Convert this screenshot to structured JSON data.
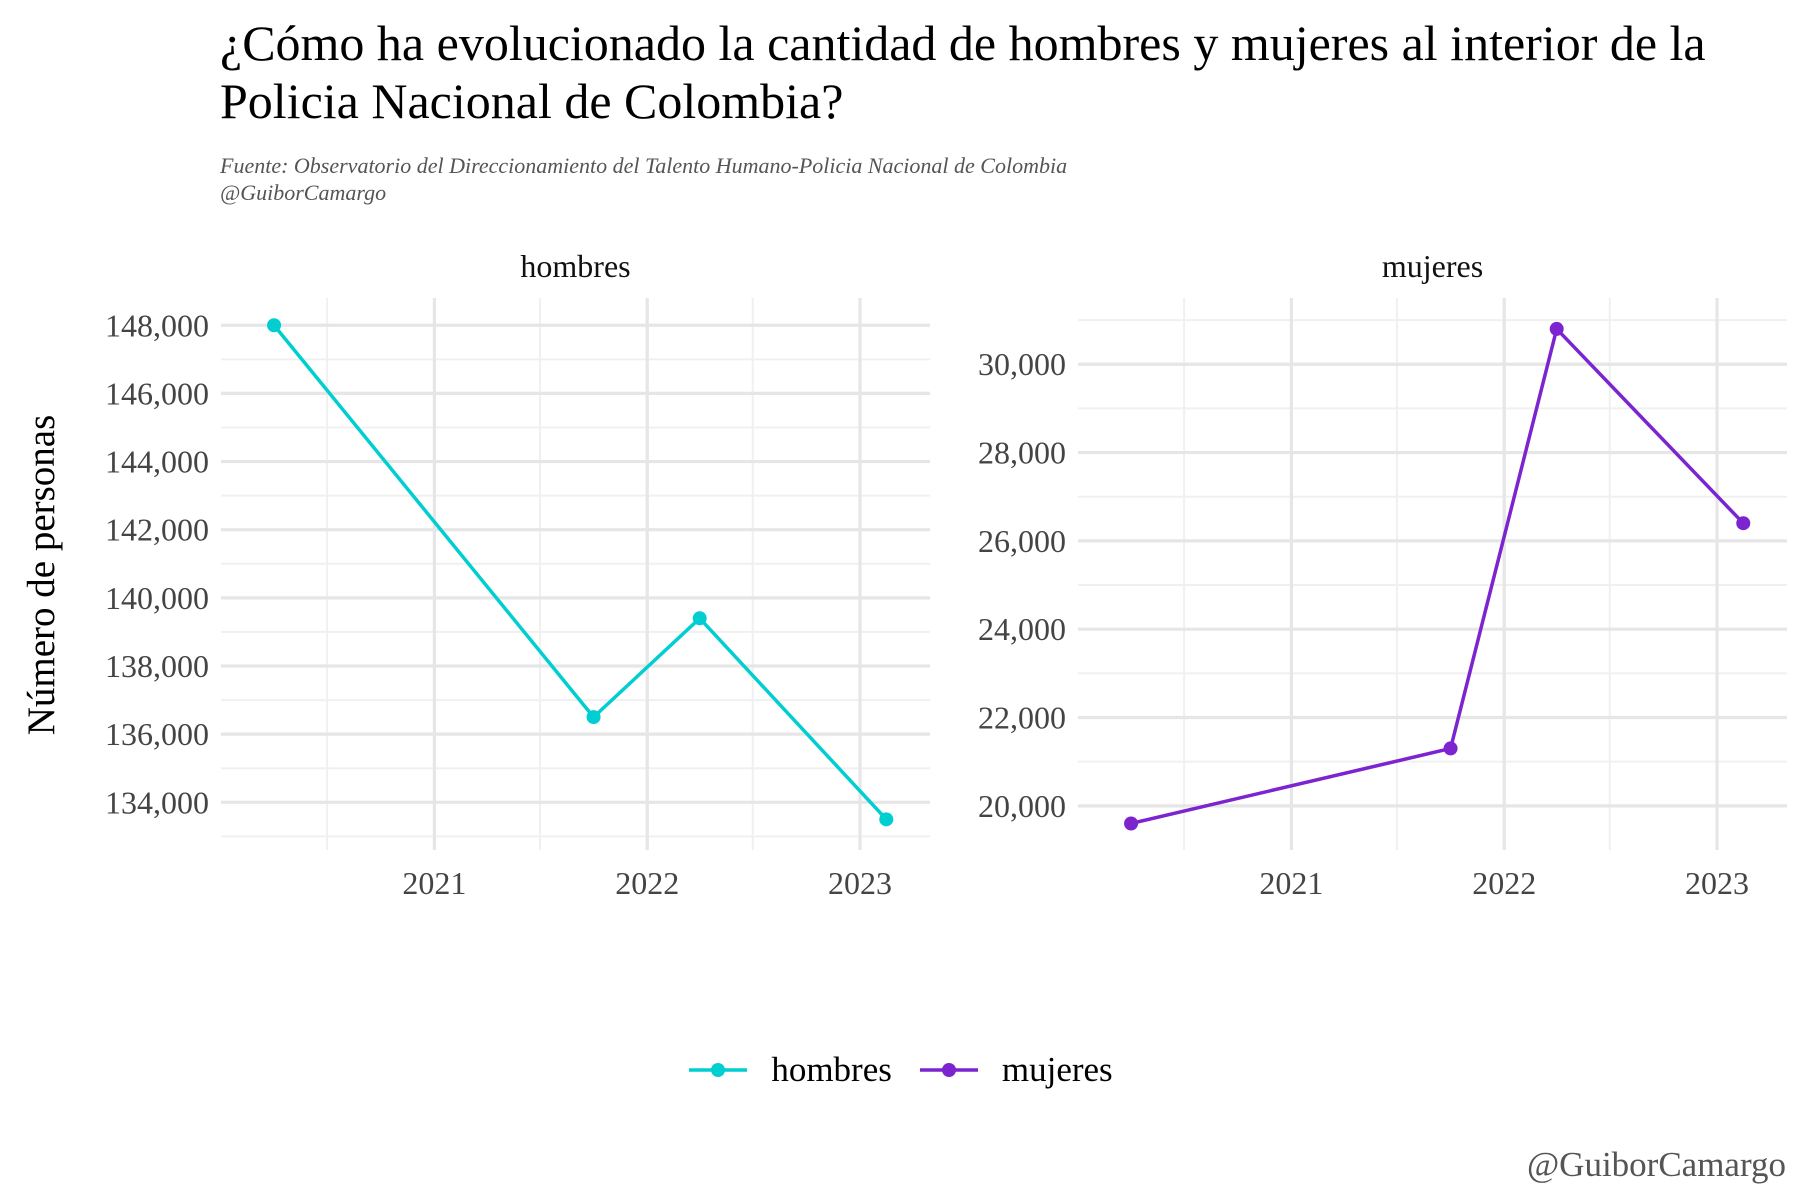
{
  "title": "¿Cómo ha evolucionado la cantidad de hombres y mujeres al interior de la Policia Nacional de Colombia?",
  "subtitle": [
    "Fuente: Observatorio del Direccionamiento del Talento Humano-Policia Nacional de Colombia",
    "@GuiborCamargo"
  ],
  "caption": "@GuiborCamargo",
  "ylabel": "Número de personas",
  "chart_data": [
    {
      "type": "line",
      "panel": "hombres",
      "color": "#00CED1",
      "x": [
        "2020-04-01",
        "2021-10-01",
        "2022-04-01",
        "2023-02-15"
      ],
      "y": [
        148000,
        136500,
        139400,
        133500
      ],
      "xlim": [
        "2020-01-01",
        "2023-05-01"
      ],
      "ylim": [
        132600,
        148800
      ],
      "yticks": [
        134000,
        136000,
        138000,
        140000,
        142000,
        144000,
        146000,
        148000
      ],
      "xticks": [
        "2021",
        "2022",
        "2023"
      ],
      "grid": true
    },
    {
      "type": "line",
      "panel": "mujeres",
      "color": "#7B24CF",
      "x": [
        "2020-04-01",
        "2021-10-01",
        "2022-04-01",
        "2023-02-15"
      ],
      "y": [
        19600,
        21300,
        30800,
        26400
      ],
      "xlim": [
        "2020-01-01",
        "2023-05-01"
      ],
      "ylim": [
        19000,
        31500
      ],
      "yticks": [
        20000,
        22000,
        24000,
        26000,
        28000,
        30000
      ],
      "xticks": [
        "2021",
        "2022",
        "2023"
      ],
      "grid": true
    }
  ],
  "legend": {
    "position": "bottom",
    "items": [
      {
        "label": "hombres",
        "color": "#00CED1"
      },
      {
        "label": "mujeres",
        "color": "#7B24CF"
      }
    ]
  }
}
